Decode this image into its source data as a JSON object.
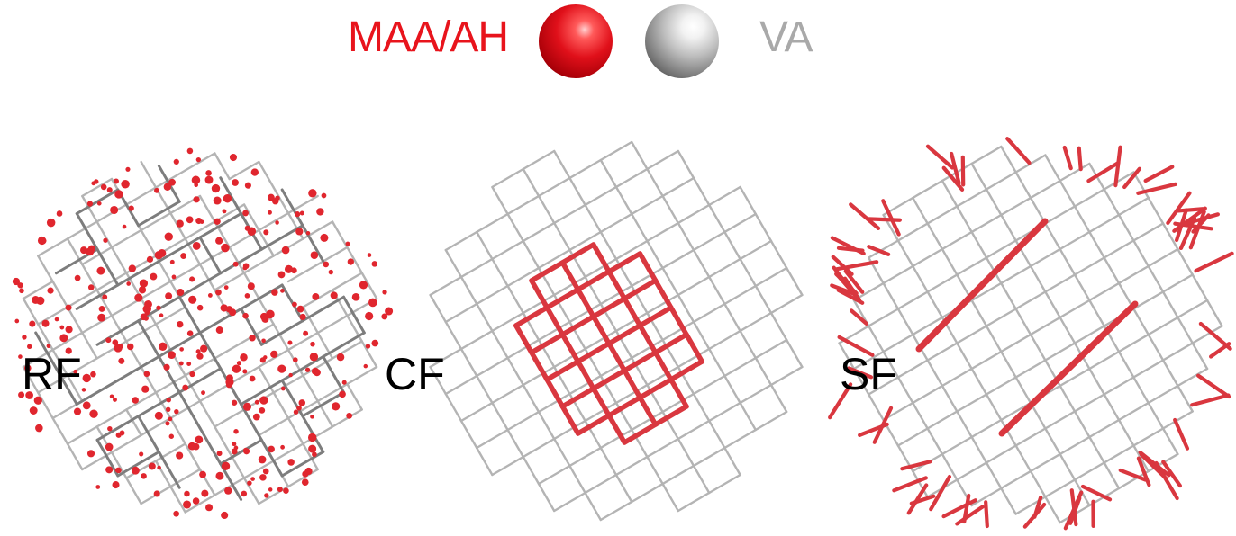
{
  "legend": {
    "maa_label": "MAA/AH",
    "va_label": "VA",
    "maa_color": "#e8141c",
    "va_color": "#a9a9a9"
  },
  "panels": [
    {
      "id": "rf",
      "label": "RF"
    },
    {
      "id": "cf",
      "label": "CF"
    },
    {
      "id": "sf",
      "label": "SF"
    }
  ],
  "colors": {
    "gray_rod": "#b4b4b4",
    "dark_rod": "#7d7d7d",
    "red_rod": "#d9373f",
    "red_bead": "#e0262e"
  }
}
